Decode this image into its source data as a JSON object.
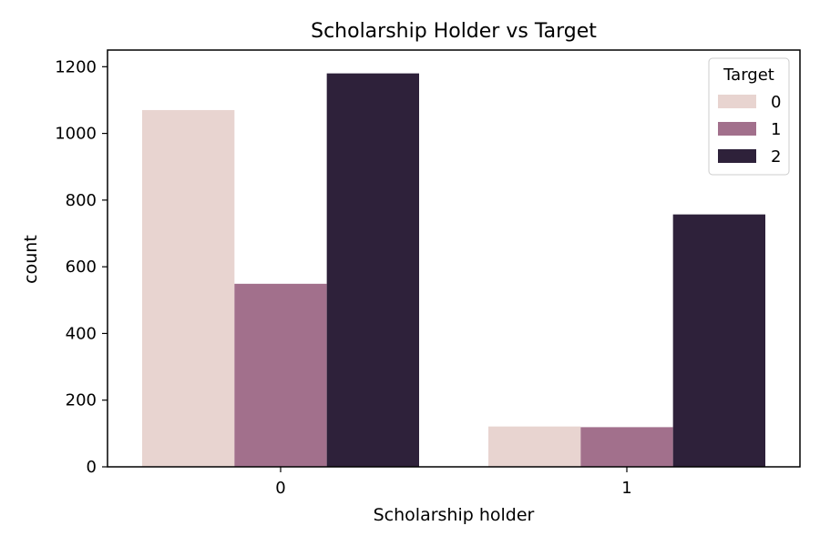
{
  "chart_data": {
    "type": "bar",
    "title": "Scholarship Holder vs Target",
    "xlabel": "Scholarship holder",
    "ylabel": "count",
    "categories": [
      "0",
      "1"
    ],
    "ylim": [
      0,
      1250
    ],
    "yticks": [
      0,
      200,
      400,
      600,
      800,
      1000,
      1200
    ],
    "grid": false,
    "legend": {
      "title": "Target",
      "position": "top-right"
    },
    "series": [
      {
        "name": "0",
        "color": "#e8d4d0",
        "values": [
          1070,
          121
        ]
      },
      {
        "name": "1",
        "color": "#a2708c",
        "values": [
          549,
          119
        ]
      },
      {
        "name": "2",
        "color": "#2e213a",
        "values": [
          1180,
          757
        ]
      }
    ]
  }
}
